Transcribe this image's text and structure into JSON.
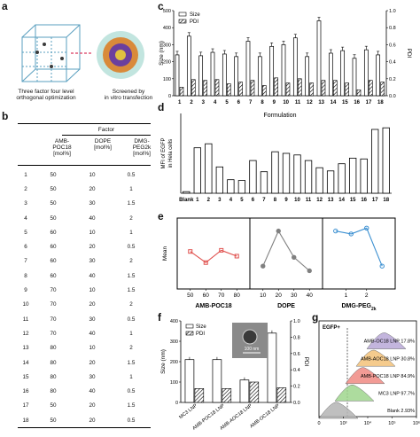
{
  "panels": {
    "a": "a",
    "b": "b",
    "c": "c",
    "d": "d",
    "e": "e",
    "f": "f",
    "g": "g"
  },
  "panel_a": {
    "left_caption": [
      "Three factor four level",
      "orthogonal optimization"
    ],
    "right_caption": [
      "Screened by",
      "in vitro transfection"
    ]
  },
  "panel_b": {
    "factor_header": "Factor",
    "col_headers": [
      [
        "AMB-",
        "POC18",
        "[mol%]"
      ],
      [
        "DOPE",
        "[mol%]"
      ],
      [
        "DMG-",
        "PEG2k",
        "[mol%]"
      ]
    ],
    "rows": [
      [
        "1",
        "50",
        "10",
        "0.5"
      ],
      [
        "2",
        "50",
        "20",
        "1"
      ],
      [
        "3",
        "50",
        "30",
        "1.5"
      ],
      [
        "4",
        "50",
        "40",
        "2"
      ],
      [
        "5",
        "60",
        "10",
        "1"
      ],
      [
        "6",
        "60",
        "20",
        "0.5"
      ],
      [
        "7",
        "60",
        "30",
        "2"
      ],
      [
        "8",
        "60",
        "40",
        "1.5"
      ],
      [
        "9",
        "70",
        "10",
        "1.5"
      ],
      [
        "10",
        "70",
        "20",
        "2"
      ],
      [
        "11",
        "70",
        "30",
        "0.5"
      ],
      [
        "12",
        "70",
        "40",
        "1"
      ],
      [
        "13",
        "80",
        "10",
        "2"
      ],
      [
        "14",
        "80",
        "20",
        "1.5"
      ],
      [
        "15",
        "80",
        "30",
        "1"
      ],
      [
        "16",
        "80",
        "40",
        "0.5"
      ],
      [
        "17",
        "50",
        "20",
        "1.5"
      ],
      [
        "18",
        "50",
        "20",
        "0.5"
      ]
    ]
  },
  "chart_data": [
    {
      "panel": "c",
      "type": "bar",
      "categories": [
        "1",
        "2",
        "3",
        "4",
        "5",
        "6",
        "7",
        "8",
        "9",
        "10",
        "11",
        "12",
        "13",
        "14",
        "15",
        "16",
        "17",
        "18"
      ],
      "series": [
        {
          "name": "Size",
          "axis": "left",
          "values": [
            240,
            350,
            235,
            255,
            245,
            230,
            320,
            230,
            290,
            300,
            340,
            230,
            440,
            250,
            265,
            220,
            270,
            240
          ]
        },
        {
          "name": "PDI",
          "axis": "right",
          "values": [
            0.1,
            0.19,
            0.18,
            0.19,
            0.14,
            0.16,
            0.18,
            0.12,
            0.21,
            0.15,
            0.2,
            0.15,
            0.18,
            0.18,
            0.15,
            0.07,
            0.18,
            0.16
          ]
        }
      ],
      "xlabel": "Formulation",
      "ylabel": "Size (nm)",
      "y2label": "PDI",
      "ylim": [
        0,
        500
      ],
      "y2lim": [
        0,
        1.0
      ],
      "yticks": [
        "0",
        "100",
        "200",
        "300",
        "400",
        "500"
      ],
      "y2ticks": [
        "0.0",
        "0.2",
        "0.4",
        "0.6",
        "0.8",
        "1.0"
      ],
      "legend": [
        "Size",
        "PDI"
      ]
    },
    {
      "panel": "d",
      "type": "bar",
      "categories": [
        "Blank",
        "1",
        "2",
        "3",
        "4",
        "5",
        "6",
        "7",
        "8",
        "9",
        "10",
        "11",
        "12",
        "13",
        "14",
        "15",
        "16",
        "17",
        "18"
      ],
      "values": [
        0.02,
        0.57,
        0.62,
        0.33,
        0.17,
        0.16,
        0.41,
        0.27,
        0.52,
        0.5,
        0.48,
        0.41,
        0.32,
        0.28,
        0.37,
        0.44,
        0.43,
        0.8,
        0.82
      ],
      "ylabel": "MFI of EGFP in Hela cells",
      "ylim": [
        0,
        1.0
      ],
      "yticks": []
    },
    {
      "panel": "e",
      "type": "line",
      "ylabel": "Mean",
      "groups": [
        {
          "name": "AMB-POC18",
          "color": "#e0524f",
          "ticks": [
            "50",
            "60",
            "70",
            "80"
          ],
          "values": [
            0.55,
            0.36,
            0.57,
            0.47
          ]
        },
        {
          "name": "DOPE",
          "color": "#808080",
          "ticks": [
            "10",
            "20",
            "30",
            "40"
          ],
          "values": [
            0.3,
            0.9,
            0.45,
            0.22
          ]
        },
        {
          "name": "DMG-PEG2k",
          "color": "#3a8fd1",
          "ticks": [
            "0.5",
            "1",
            "1.5",
            "2"
          ],
          "values": [
            0.9,
            0.85,
            0.95,
            0.3
          ]
        }
      ],
      "group_labels": [
        "AMB-POC18",
        "DOPE",
        "DMG-PEG"
      ],
      "group_label_sub": [
        "",
        "",
        "2k"
      ],
      "tick_labels": [
        [
          "50",
          "60",
          "70",
          "80"
        ],
        [
          "10",
          "20",
          "30",
          "40"
        ],
        [
          "1",
          "2"
        ]
      ]
    },
    {
      "panel": "f",
      "type": "bar",
      "categories": [
        "MC3 LNP",
        "AMB-POC18 LNP",
        "AMB-AOC18 LNP",
        "AMB-OC18 LNP"
      ],
      "series": [
        {
          "name": "Size",
          "axis": "left",
          "values": [
            210,
            210,
            110,
            340
          ]
        },
        {
          "name": "PDI",
          "axis": "right",
          "values": [
            0.17,
            0.17,
            0.25,
            0.18
          ]
        }
      ],
      "ylabel": "Size (nm)",
      "y2label": "PDI",
      "ylim": [
        0,
        400
      ],
      "y2lim": [
        0,
        1.0
      ],
      "yticks": [
        "0",
        "100",
        "200",
        "300",
        "400"
      ],
      "y2ticks": [
        "0.0",
        "0.2",
        "0.4",
        "0.6",
        "0.8",
        "1.0"
      ],
      "legend": [
        "Size",
        "PDI"
      ],
      "inset_scale": "100 nm"
    },
    {
      "panel": "g",
      "type": "area",
      "gate_label": "EGFP+",
      "series": [
        {
          "name": "AMB-OC18 LNP",
          "label": "AMB-OC18 LNP 17.8%",
          "color": "#b9a9d8"
        },
        {
          "name": "AMB-AOC18 LNP",
          "label": "AMB-AOC18 LNP 30.8%",
          "color": "#f4c27a"
        },
        {
          "name": "AMB-POC18 LNP",
          "label": "AMB-POC18 LNP 84.9%",
          "color": "#f08a83"
        },
        {
          "name": "MC3 LNP",
          "label": "MC3 LNP 97.7%",
          "color": "#9fd68e"
        },
        {
          "name": "Blank",
          "label": "Blank 2.93%",
          "color": "#b5b5b5"
        }
      ],
      "xticks": [
        "0",
        "10³",
        "10⁴",
        "10⁵",
        "10⁶"
      ]
    }
  ]
}
